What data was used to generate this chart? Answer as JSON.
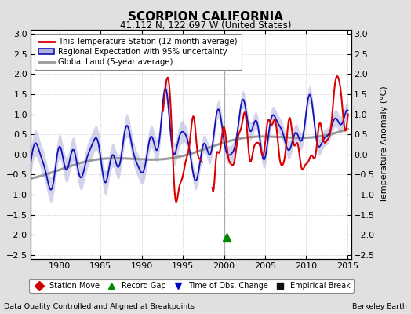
{
  "title": "SCORPION CALIFORNIA",
  "subtitle": "41.112 N, 122.697 W (United States)",
  "ylabel": "Temperature Anomaly (°C)",
  "xlabel_note": "Data Quality Controlled and Aligned at Breakpoints",
  "credit": "Berkeley Earth",
  "xlim": [
    1976.5,
    2015.5
  ],
  "ylim": [
    -2.6,
    3.1
  ],
  "yticks": [
    -2.5,
    -2,
    -1.5,
    -1,
    -0.5,
    0,
    0.5,
    1,
    1.5,
    2,
    2.5,
    3
  ],
  "xticks": [
    1980,
    1985,
    1990,
    1995,
    2000,
    2005,
    2010,
    2015
  ],
  "bg_color": "#e0e0e0",
  "plot_bg_color": "#ffffff",
  "red_line_color": "#dd0000",
  "blue_line_color": "#1111bb",
  "blue_fill_color": "#b0b0dd",
  "gray_line_color": "#999999",
  "vertical_line_x": 2000,
  "record_gap_marker_x": 2000.3,
  "record_gap_marker_y": -2.05,
  "red_start_year": 1992.5,
  "red_gap_start": 1997.4,
  "red_gap_end": 1998.5,
  "legend_entries": [
    "This Temperature Station (12-month average)",
    "Regional Expectation with 95% uncertainty",
    "Global Land (5-year average)"
  ],
  "bottom_legend_entries": [
    {
      "label": "Station Move",
      "color": "#cc0000",
      "marker": "D"
    },
    {
      "label": "Record Gap",
      "color": "#008800",
      "marker": "^"
    },
    {
      "label": "Time of Obs. Change",
      "color": "#0000cc",
      "marker": "v"
    },
    {
      "label": "Empirical Break",
      "color": "#111111",
      "marker": "s"
    }
  ]
}
